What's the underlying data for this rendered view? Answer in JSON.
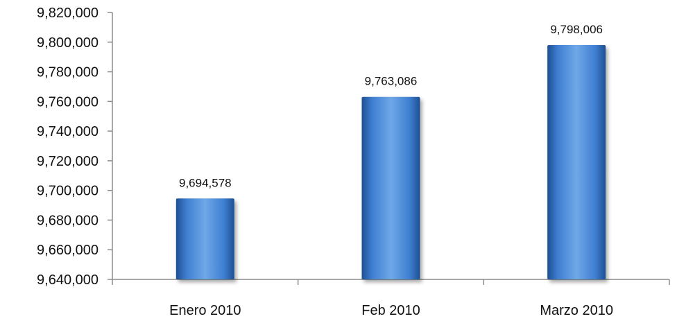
{
  "chart_data": {
    "type": "bar",
    "categories": [
      "Enero 2010",
      "Feb 2010",
      "Marzo 2010"
    ],
    "values": [
      9694578,
      9763086,
      9798006
    ],
    "data_labels": [
      "9,694,578",
      "9,763,086",
      "9,798,006"
    ],
    "y_ticks": [
      9640000,
      9660000,
      9680000,
      9700000,
      9720000,
      9740000,
      9760000,
      9780000,
      9800000,
      9820000
    ],
    "y_tick_labels": [
      "9,640,000",
      "9,660,000",
      "9,680,000",
      "9,700,000",
      "9,720,000",
      "9,740,000",
      "9,760,000",
      "9,780,000",
      "9,800,000",
      "9,820,000"
    ],
    "ylim": [
      9640000,
      9820000
    ],
    "grid": false,
    "legend": "none",
    "title": "",
    "xlabel": "",
    "ylabel": "",
    "bar_color": "#3f7fd1",
    "bar_color_light": "#6fa8e8",
    "bar_color_dark": "#1f4f93"
  }
}
